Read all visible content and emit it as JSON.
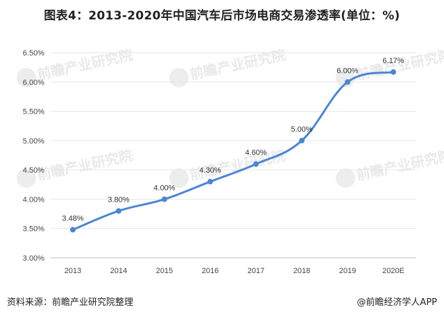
{
  "title": "图表4：2013-2020年中国汽车后市场电商交易渗透率(单位：%)",
  "watermark": "前瞻产业研究院",
  "source": "资料来源：前瞻产业研究院整理",
  "attribution": "@前瞻经济学人APP",
  "colors": {
    "line": "#4a86d4",
    "grid": "#e6e6e6",
    "axis": "#bfbfbf"
  },
  "chart_data": {
    "type": "line",
    "title": "图表4：2013-2020年中国汽车后市场电商交易渗透率(单位：%)",
    "categories": [
      "2013",
      "2014",
      "2015",
      "2016",
      "2017",
      "2018",
      "2019",
      "2020E"
    ],
    "series": [
      {
        "values": [
          3.48,
          3.8,
          4.0,
          4.3,
          4.6,
          5.0,
          6.0,
          6.17
        ],
        "labels": [
          "3.48%",
          "3.80%",
          "4.00%",
          "4.30%",
          "4.60%",
          "5.00%",
          "6.00%",
          "6.17%"
        ]
      }
    ],
    "yticks": [
      "3.00%",
      "3.50%",
      "4.00%",
      "4.50%",
      "5.00%",
      "5.50%",
      "6.00%",
      "6.50%"
    ],
    "ylim": [
      3.0,
      6.5
    ],
    "grid": true,
    "smooth": true
  }
}
